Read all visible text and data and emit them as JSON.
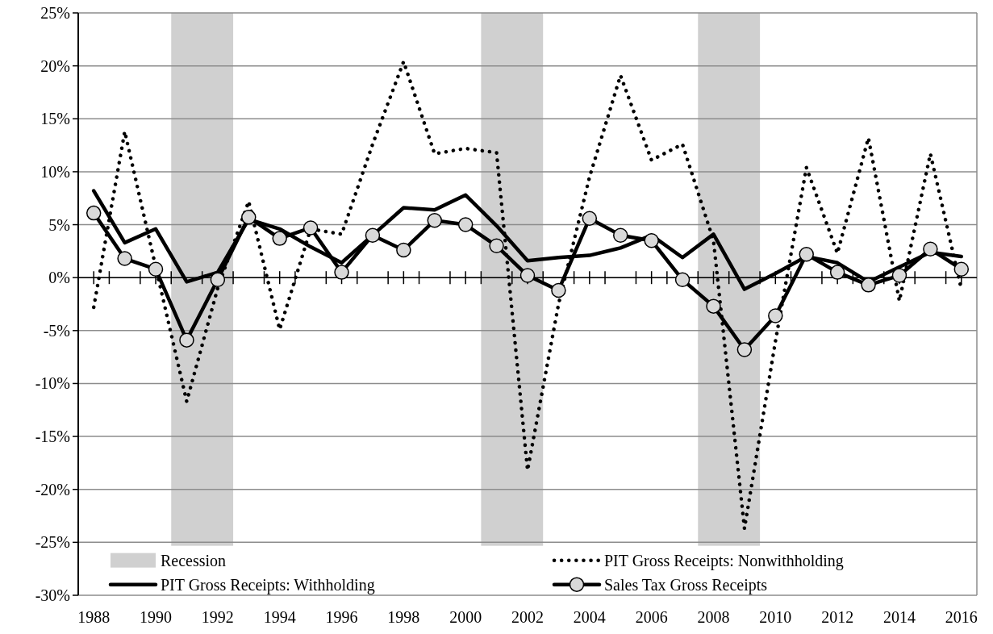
{
  "chart_data": {
    "type": "line",
    "x": [
      1988,
      1989,
      1990,
      1991,
      1992,
      1993,
      1994,
      1995,
      1996,
      1997,
      1998,
      1999,
      2000,
      2001,
      2002,
      2003,
      2004,
      2005,
      2006,
      2007,
      2008,
      2009,
      2010,
      2011,
      2012,
      2013,
      2014,
      2015,
      2016
    ],
    "xlim": [
      1987.5,
      2016.5
    ],
    "xticks": [
      1988,
      {
        "value": 1988.5,
        "label": null
      },
      {
        "value": 1989.5,
        "label": null
      },
      1990,
      {
        "value": 1990.5,
        "label": null
      },
      {
        "value": 1991.5,
        "label": null
      },
      1992,
      {
        "value": 1992.5,
        "label": null
      },
      {
        "value": 1993.5,
        "label": null
      },
      1994,
      {
        "value": 1994.5,
        "label": null
      },
      {
        "value": 1995.5,
        "label": null
      },
      1996,
      {
        "value": 1996.5,
        "label": null
      },
      {
        "value": 1997.5,
        "label": null
      },
      1998,
      {
        "value": 1998.5,
        "label": null
      },
      {
        "value": 1999.5,
        "label": null
      },
      2000,
      {
        "value": 2000.5,
        "label": null
      },
      {
        "value": 2001.5,
        "label": null
      },
      2002,
      {
        "value": 2002.5,
        "label": null
      },
      {
        "value": 2003.5,
        "label": null
      },
      2004,
      {
        "value": 2004.5,
        "label": null
      },
      {
        "value": 2005.5,
        "label": null
      },
      2006,
      {
        "value": 2006.5,
        "label": null
      },
      {
        "value": 2007.5,
        "label": null
      },
      2008,
      {
        "value": 2008.5,
        "label": null
      },
      {
        "value": 2009.5,
        "label": null
      },
      2010,
      {
        "value": 2010.5,
        "label": null
      },
      {
        "value": 2011.5,
        "label": null
      },
      2012,
      {
        "value": 2012.5,
        "label": null
      },
      {
        "value": 2013.5,
        "label": null
      },
      2014,
      {
        "value": 2014.5,
        "label": null
      },
      {
        "value": 2015.5,
        "label": null
      },
      2016
    ],
    "ylim": [
      -30,
      25
    ],
    "yticks": [
      {
        "value": -30,
        "label": "-30%"
      },
      {
        "value": -25,
        "label": "-25%"
      },
      {
        "value": -20,
        "label": "-20%"
      },
      {
        "value": -15,
        "label": "-15%"
      },
      {
        "value": -10,
        "label": "-10%"
      },
      {
        "value": -5,
        "label": "-5%"
      },
      {
        "value": 0,
        "label": "0%"
      },
      {
        "value": 5,
        "label": "5%"
      },
      {
        "value": 10,
        "label": "10%"
      },
      {
        "value": 15,
        "label": "15%"
      },
      {
        "value": 20,
        "label": "20%"
      },
      {
        "value": 25,
        "label": "25%"
      }
    ],
    "grid": "y",
    "legend": "bottom",
    "bands": [
      {
        "axis": "x",
        "from": 1990.5,
        "to": 1992.5,
        "label": "Recession",
        "color": "#d0d0d0"
      },
      {
        "axis": "x",
        "from": 2000.5,
        "to": 2002.5,
        "color": "#d0d0d0"
      },
      {
        "axis": "x",
        "from": 2007.5,
        "to": 2009.5,
        "color": "#d0d0d0"
      }
    ],
    "series": [
      {
        "name": "PIT Gross Receipts:  Nonwithholding",
        "color": "#000000",
        "line_style": "dotted",
        "marker": "none",
        "values": [
          -2.8,
          13.8,
          1.0,
          -11.7,
          -1.0,
          7.2,
          -4.9,
          4.6,
          4.1,
          12.6,
          20.4,
          11.7,
          12.2,
          11.8,
          -18.2,
          -2.5,
          9.5,
          19.1,
          11.1,
          12.6,
          3.5,
          -23.7,
          -6.0,
          10.4,
          2.3,
          13.2,
          -2.2,
          11.7,
          -1.1
        ]
      },
      {
        "name": "PIT Gross Receipts: Withholding",
        "color": "#000000",
        "line_style": "solid",
        "marker": "none",
        "values": [
          8.2,
          3.3,
          4.6,
          -0.4,
          0.5,
          5.5,
          4.6,
          2.9,
          1.4,
          4.0,
          6.6,
          6.4,
          7.8,
          4.9,
          1.6,
          1.9,
          2.1,
          2.8,
          4.0,
          1.9,
          4.1,
          -1.1,
          0.4,
          2.0,
          1.4,
          -0.4,
          1.0,
          2.4,
          2.0
        ]
      },
      {
        "name": "Sales Tax Gross Receipts",
        "color": "#000000",
        "line_style": "solid",
        "marker": "circle",
        "values": [
          6.1,
          1.8,
          0.8,
          -5.9,
          -0.2,
          5.7,
          3.7,
          4.7,
          0.5,
          4.0,
          2.6,
          5.4,
          5.0,
          3.0,
          0.2,
          -1.2,
          5.6,
          4.0,
          3.5,
          -0.2,
          -2.7,
          -6.8,
          -3.6,
          2.2,
          0.5,
          -0.7,
          0.2,
          2.7,
          0.8
        ]
      }
    ]
  }
}
